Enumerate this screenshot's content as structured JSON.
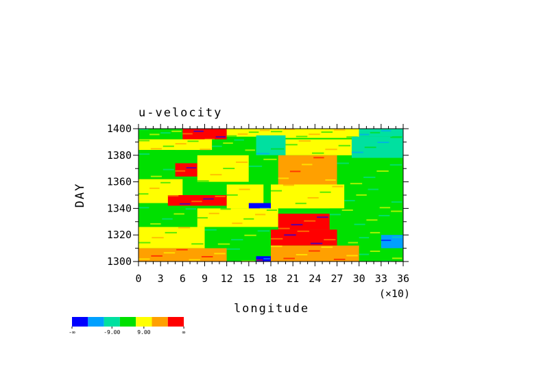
{
  "chart_data": {
    "type": "heatmap",
    "title": "u-velocity",
    "xlabel": "longitude",
    "ylabel": "DAY",
    "x_multiplier_label": "(×10)",
    "x_ticks": [
      0,
      3,
      6,
      9,
      12,
      15,
      18,
      21,
      24,
      27,
      30,
      33,
      36
    ],
    "y_ticks": [
      1300,
      1320,
      1340,
      1360,
      1380,
      1400
    ],
    "xlim": [
      0,
      36
    ],
    "ylim": [
      1300,
      1400
    ],
    "colorbar": {
      "colors": [
        "#0000ff",
        "#00a0ff",
        "#00e0a0",
        "#00e000",
        "#ffff00",
        "#ffa000",
        "#ff0000"
      ],
      "labels": [
        "-∞",
        "-9.00",
        "9.00",
        "∞"
      ]
    },
    "bands": [
      {
        "x0": 0,
        "x1": 6,
        "y0": 1395,
        "y1": 1400,
        "c": 3
      },
      {
        "x0": 6,
        "x1": 12,
        "y0": 1392,
        "y1": 1400,
        "c": 6
      },
      {
        "x0": 12,
        "x1": 18,
        "y0": 1394,
        "y1": 1400,
        "c": 4
      },
      {
        "x0": 18,
        "x1": 30,
        "y0": 1393,
        "y1": 1400,
        "c": 4
      },
      {
        "x0": 30,
        "x1": 36,
        "y0": 1394,
        "y1": 1400,
        "c": 2
      },
      {
        "x0": 0,
        "x1": 10,
        "y0": 1384,
        "y1": 1392,
        "c": 4
      },
      {
        "x0": 10,
        "x1": 16,
        "y0": 1382,
        "y1": 1392,
        "c": 3
      },
      {
        "x0": 16,
        "x1": 20,
        "y0": 1380,
        "y1": 1395,
        "c": 2
      },
      {
        "x0": 20,
        "x1": 29,
        "y0": 1380,
        "y1": 1392,
        "c": 4
      },
      {
        "x0": 29,
        "x1": 36,
        "y0": 1378,
        "y1": 1394,
        "c": 2
      },
      {
        "x0": 0,
        "x1": 5,
        "y0": 1362,
        "y1": 1384,
        "c": 3
      },
      {
        "x0": 5,
        "x1": 8,
        "y0": 1364,
        "y1": 1374,
        "c": 6
      },
      {
        "x0": 8,
        "x1": 15,
        "y0": 1360,
        "y1": 1380,
        "c": 4
      },
      {
        "x0": 15,
        "x1": 19,
        "y0": 1358,
        "y1": 1380,
        "c": 3
      },
      {
        "x0": 19,
        "x1": 27,
        "y0": 1358,
        "y1": 1380,
        "c": 5
      },
      {
        "x0": 27,
        "x1": 36,
        "y0": 1358,
        "y1": 1378,
        "c": 3
      },
      {
        "x0": 0,
        "x1": 6,
        "y0": 1344,
        "y1": 1362,
        "c": 4
      },
      {
        "x0": 4,
        "x1": 12,
        "y0": 1342,
        "y1": 1350,
        "c": 6
      },
      {
        "x0": 12,
        "x1": 17,
        "y0": 1340,
        "y1": 1358,
        "c": 4
      },
      {
        "x0": 15,
        "x1": 18,
        "y0": 1338,
        "y1": 1344,
        "c": 0
      },
      {
        "x0": 18,
        "x1": 28,
        "y0": 1340,
        "y1": 1358,
        "c": 4
      },
      {
        "x0": 28,
        "x1": 36,
        "y0": 1340,
        "y1": 1358,
        "c": 3
      },
      {
        "x0": 0,
        "x1": 8,
        "y0": 1326,
        "y1": 1342,
        "c": 3
      },
      {
        "x0": 8,
        "x1": 19,
        "y0": 1326,
        "y1": 1340,
        "c": 4
      },
      {
        "x0": 19,
        "x1": 26,
        "y0": 1324,
        "y1": 1336,
        "c": 6
      },
      {
        "x0": 26,
        "x1": 36,
        "y0": 1326,
        "y1": 1340,
        "c": 3
      },
      {
        "x0": 0,
        "x1": 9,
        "y0": 1310,
        "y1": 1326,
        "c": 4
      },
      {
        "x0": 9,
        "x1": 18,
        "y0": 1312,
        "y1": 1326,
        "c": 3
      },
      {
        "x0": 18,
        "x1": 27,
        "y0": 1312,
        "y1": 1324,
        "c": 6
      },
      {
        "x0": 27,
        "x1": 33,
        "y0": 1310,
        "y1": 1326,
        "c": 3
      },
      {
        "x0": 33,
        "x1": 36,
        "y0": 1310,
        "y1": 1320,
        "c": 1
      },
      {
        "x0": 0,
        "x1": 12,
        "y0": 1300,
        "y1": 1310,
        "c": 5
      },
      {
        "x0": 12,
        "x1": 16,
        "y0": 1300,
        "y1": 1312,
        "c": 3
      },
      {
        "x0": 16,
        "x1": 18,
        "y0": 1300,
        "y1": 1304,
        "c": 0
      },
      {
        "x0": 18,
        "x1": 30,
        "y0": 1300,
        "y1": 1312,
        "c": 5
      },
      {
        "x0": 30,
        "x1": 36,
        "y0": 1300,
        "y1": 1310,
        "c": 3
      }
    ]
  }
}
